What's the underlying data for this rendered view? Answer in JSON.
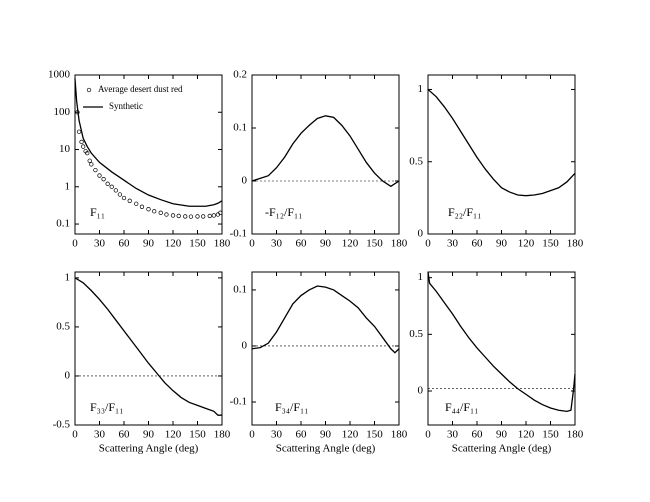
{
  "chart_data": [
    {
      "type": "line",
      "label": "F₁₁",
      "yscale": "log",
      "xlim": [
        0,
        180
      ],
      "xticks": [
        0,
        30,
        60,
        90,
        120,
        150,
        180
      ],
      "ylim": [
        0.054,
        1000
      ],
      "yticks": [
        0.1,
        1,
        10,
        100,
        1000
      ],
      "series": [
        {
          "name": "Average desert dust red",
          "mode": "markers",
          "color": "#000000",
          "x": [
            3,
            5,
            8,
            10,
            13,
            15,
            18,
            20,
            25,
            30,
            35,
            40,
            45,
            50,
            55,
            60,
            67,
            75,
            82,
            90,
            97,
            105,
            112,
            120,
            127,
            135,
            142,
            150,
            157,
            165,
            170,
            175,
            178
          ],
          "values": [
            100,
            30,
            16,
            12,
            9,
            8,
            5,
            4,
            2.8,
            2,
            1.6,
            1.2,
            1,
            0.8,
            0.62,
            0.5,
            0.42,
            0.35,
            0.29,
            0.25,
            0.22,
            0.2,
            0.18,
            0.17,
            0.165,
            0.16,
            0.158,
            0.16,
            0.16,
            0.165,
            0.17,
            0.18,
            0.2
          ]
        },
        {
          "name": "Synthetic",
          "mode": "lines",
          "color": "#000000",
          "x": [
            0,
            2,
            5,
            10,
            15,
            20,
            30,
            45,
            60,
            75,
            90,
            105,
            120,
            140,
            160,
            170,
            175,
            180
          ],
          "values": [
            800,
            200,
            60,
            20,
            12,
            8,
            4.5,
            2.5,
            1.5,
            0.9,
            0.6,
            0.45,
            0.35,
            0.3,
            0.3,
            0.33,
            0.36,
            0.42
          ]
        }
      ]
    },
    {
      "type": "line",
      "label": "-F₁₂/F₁₁",
      "xlim": [
        0,
        180
      ],
      "xticks": [
        0,
        30,
        60,
        90,
        120,
        150,
        180
      ],
      "ylim": [
        -0.1,
        0.2
      ],
      "yticks": [
        -0.1,
        0,
        0.1,
        0.2
      ],
      "reference_line": 0,
      "series": [
        {
          "name": null,
          "mode": "lines",
          "color": "#000000",
          "x": [
            0,
            10,
            20,
            30,
            40,
            50,
            60,
            70,
            80,
            90,
            100,
            110,
            120,
            130,
            140,
            150,
            160,
            170,
            175,
            180
          ],
          "values": [
            0,
            0.005,
            0.01,
            0.025,
            0.045,
            0.07,
            0.09,
            0.105,
            0.118,
            0.123,
            0.12,
            0.105,
            0.085,
            0.06,
            0.035,
            0.015,
            0,
            -0.01,
            -0.005,
            0
          ]
        }
      ]
    },
    {
      "type": "line",
      "label": "F₂₂/F₁₁",
      "xlim": [
        0,
        180
      ],
      "xticks": [
        0,
        30,
        60,
        90,
        120,
        150,
        180
      ],
      "ylim": [
        0,
        1.1
      ],
      "yticks": [
        0,
        0.5,
        1
      ],
      "series": [
        {
          "name": null,
          "mode": "lines",
          "color": "#000000",
          "x": [
            0,
            10,
            20,
            30,
            40,
            50,
            60,
            70,
            80,
            90,
            100,
            110,
            120,
            130,
            140,
            150,
            160,
            170,
            180
          ],
          "values": [
            1,
            0.95,
            0.88,
            0.8,
            0.71,
            0.62,
            0.53,
            0.45,
            0.38,
            0.32,
            0.29,
            0.27,
            0.265,
            0.27,
            0.28,
            0.3,
            0.32,
            0.36,
            0.42
          ]
        }
      ]
    },
    {
      "type": "line",
      "label": "F₃₃/F₁₁",
      "xlabel": "Scattering Angle (deg)",
      "xlim": [
        0,
        180
      ],
      "xticks": [
        0,
        30,
        60,
        90,
        120,
        150,
        180
      ],
      "ylim": [
        -0.5,
        1.06
      ],
      "yticks": [
        -0.5,
        0,
        0.5,
        1
      ],
      "reference_line": 0,
      "series": [
        {
          "name": null,
          "mode": "lines",
          "color": "#000000",
          "x": [
            0,
            10,
            20,
            30,
            40,
            50,
            60,
            70,
            80,
            90,
            100,
            110,
            120,
            130,
            140,
            150,
            160,
            170,
            175,
            180
          ],
          "values": [
            1,
            0.95,
            0.87,
            0.78,
            0.68,
            0.57,
            0.46,
            0.35,
            0.24,
            0.13,
            0.03,
            -0.07,
            -0.15,
            -0.22,
            -0.27,
            -0.3,
            -0.33,
            -0.36,
            -0.4,
            -0.4
          ]
        }
      ]
    },
    {
      "type": "line",
      "label": "F₃₄/F₁₁",
      "xlabel": "Scattering Angle (deg)",
      "xlim": [
        0,
        180
      ],
      "xticks": [
        0,
        30,
        60,
        90,
        120,
        150,
        180
      ],
      "ylim": [
        -0.141,
        0.132
      ],
      "yticks": [
        -0.1,
        0,
        0.1
      ],
      "reference_line": 0,
      "series": [
        {
          "name": null,
          "mode": "lines",
          "color": "#000000",
          "x": [
            0,
            10,
            20,
            30,
            40,
            50,
            60,
            70,
            80,
            90,
            100,
            110,
            120,
            130,
            140,
            150,
            160,
            170,
            175,
            180
          ],
          "values": [
            -0.005,
            -0.003,
            0.005,
            0.025,
            0.05,
            0.075,
            0.09,
            0.1,
            0.107,
            0.105,
            0.1,
            0.09,
            0.08,
            0.068,
            0.05,
            0.035,
            0.015,
            -0.005,
            -0.012,
            -0.005
          ]
        }
      ]
    },
    {
      "type": "line",
      "label": "F₄₄/F₁₁",
      "xlabel": "Scattering Angle (deg)",
      "xlim": [
        0,
        180
      ],
      "xticks": [
        0,
        30,
        60,
        90,
        120,
        150,
        180
      ],
      "ylim": [
        -0.3,
        1.05
      ],
      "yticks": [
        0,
        0.5,
        1
      ],
      "reference_line": 0.02,
      "series": [
        {
          "name": null,
          "mode": "lines",
          "color": "#000000",
          "x": [
            0,
            2,
            10,
            20,
            30,
            40,
            50,
            60,
            70,
            80,
            90,
            100,
            110,
            120,
            130,
            140,
            150,
            160,
            170,
            175,
            178,
            180
          ],
          "values": [
            1.05,
            0.95,
            0.88,
            0.78,
            0.68,
            0.57,
            0.47,
            0.38,
            0.3,
            0.22,
            0.15,
            0.08,
            0.02,
            -0.03,
            -0.08,
            -0.12,
            -0.15,
            -0.17,
            -0.18,
            -0.17,
            0,
            0.15
          ]
        }
      ]
    }
  ]
}
